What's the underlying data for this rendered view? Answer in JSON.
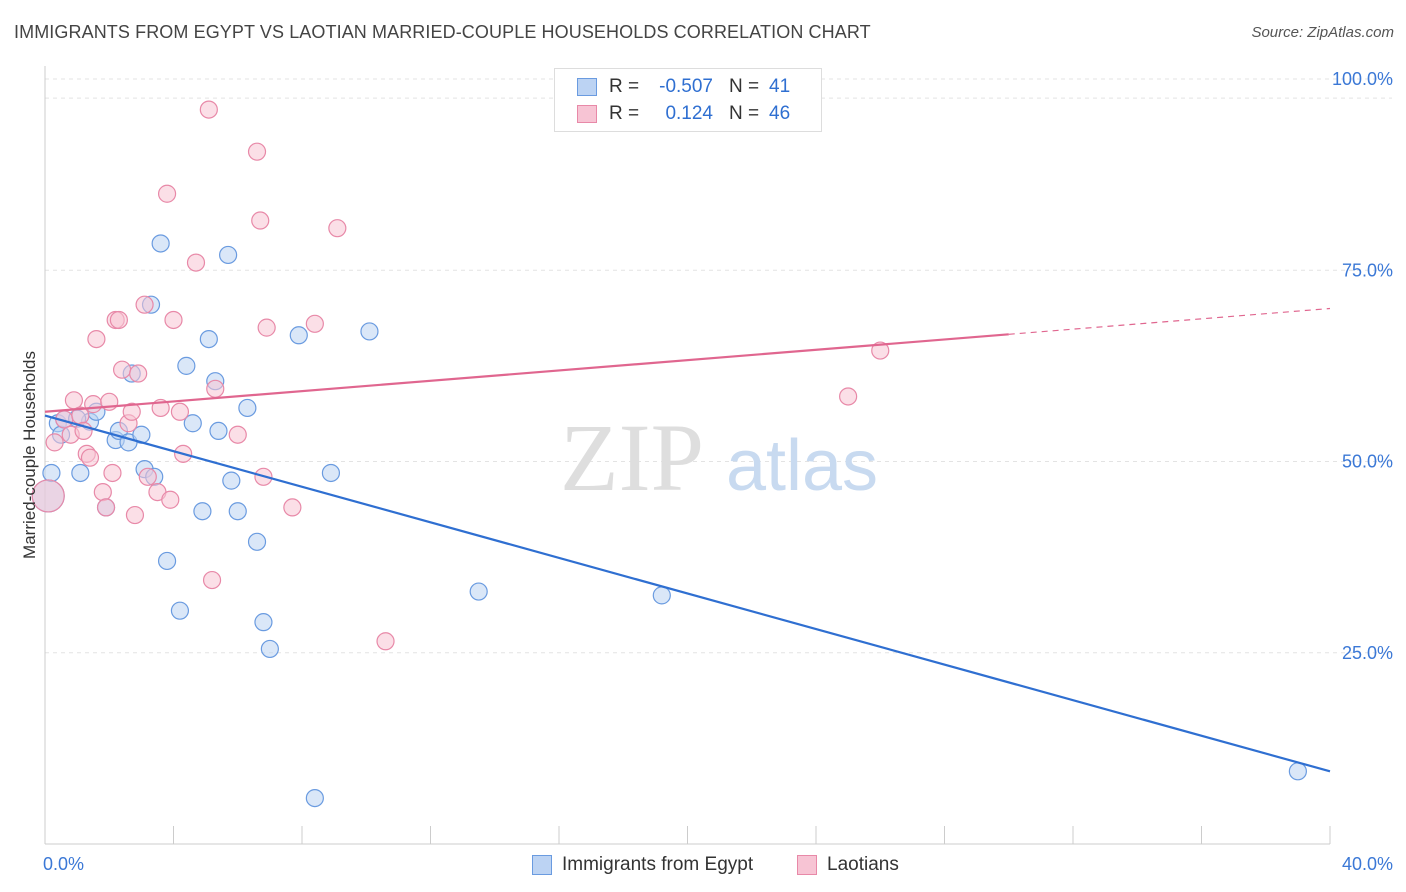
{
  "title": "IMMIGRANTS FROM EGYPT VS LAOTIAN MARRIED-COUPLE HOUSEHOLDS CORRELATION CHART",
  "source": "Source: ZipAtlas.com",
  "watermark": {
    "zip": "ZIP",
    "atlas": "atlas"
  },
  "stats": [
    {
      "r_label": "R =",
      "r_value": "-0.507",
      "n_label": "N =",
      "n_value": "41",
      "color": "#6a9be0",
      "fill": "#bcd3f3"
    },
    {
      "r_label": "R =",
      "r_value": "0.124",
      "n_label": "N =",
      "n_value": "46",
      "color": "#e889a8",
      "fill": "#f7c4d4"
    }
  ],
  "legend": [
    {
      "label": "Immigrants from Egypt",
      "color": "#6a9be0",
      "fill": "#bcd3f3"
    },
    {
      "label": "Laotians",
      "color": "#e889a8",
      "fill": "#f7c4d4"
    }
  ],
  "chart_data": {
    "type": "scatter",
    "ylabel": "Married-couple Households",
    "xlim": [
      0,
      40
    ],
    "ylim": [
      0,
      100
    ],
    "x_tick_labels": [
      {
        "value": 0,
        "label": "0.0%"
      },
      {
        "value": 40,
        "label": "40.0%"
      }
    ],
    "y_tick_labels": [
      {
        "value": 100,
        "label": "100.0%"
      },
      {
        "value": 75,
        "label": "75.0%"
      },
      {
        "value": 50,
        "label": "50.0%"
      },
      {
        "value": 25,
        "label": "25.0%"
      }
    ],
    "x_minor_ticks": [
      0,
      4,
      8,
      12,
      16,
      20,
      24,
      28,
      32,
      36,
      40
    ],
    "grid": true,
    "series": [
      {
        "name": "Immigrants from Egypt",
        "color": "#6a9be0",
        "fill": "#bcd3f3",
        "line_color": "#2f6fd1",
        "trend": {
          "x0": 0,
          "y0": 56,
          "x1": 40,
          "y1": 9.5,
          "solid_to": 40
        },
        "points": [
          [
            0.1,
            45.5,
            3
          ],
          [
            0.2,
            48.5,
            1
          ],
          [
            0.4,
            55.0,
            1
          ],
          [
            0.5,
            53.5,
            1
          ],
          [
            0.6,
            55.5,
            1
          ],
          [
            1.1,
            48.5,
            1
          ],
          [
            1.4,
            55.2,
            1
          ],
          [
            1.6,
            56.5,
            1
          ],
          [
            1.9,
            44.0,
            1
          ],
          [
            2.2,
            52.8,
            1
          ],
          [
            2.3,
            54.0,
            1
          ],
          [
            2.6,
            52.5,
            1
          ],
          [
            2.7,
            61.5,
            1
          ],
          [
            3.0,
            53.5,
            1
          ],
          [
            3.1,
            49.0,
            1
          ],
          [
            3.3,
            70.5,
            1
          ],
          [
            3.4,
            48.0,
            1
          ],
          [
            3.6,
            78.5,
            1
          ],
          [
            3.8,
            37.0,
            1
          ],
          [
            4.2,
            30.5,
            1
          ],
          [
            4.4,
            62.5,
            1
          ],
          [
            4.6,
            55.0,
            1
          ],
          [
            4.9,
            43.5,
            1
          ],
          [
            5.1,
            66.0,
            1
          ],
          [
            5.3,
            60.5,
            1
          ],
          [
            5.4,
            54.0,
            1
          ],
          [
            5.7,
            77.0,
            1
          ],
          [
            5.8,
            47.5,
            1
          ],
          [
            6.0,
            43.5,
            1
          ],
          [
            6.3,
            57.0,
            1
          ],
          [
            6.6,
            39.5,
            1
          ],
          [
            6.8,
            29.0,
            1
          ],
          [
            7.0,
            25.5,
            1
          ],
          [
            7.9,
            66.5,
            1
          ],
          [
            8.4,
            6.0,
            1
          ],
          [
            8.9,
            48.5,
            1
          ],
          [
            10.1,
            67.0,
            1
          ],
          [
            13.5,
            33.0,
            1
          ],
          [
            19.2,
            32.5,
            1
          ],
          [
            39.0,
            9.5,
            1
          ],
          [
            1.0,
            55.6,
            1
          ]
        ]
      },
      {
        "name": "Laotians",
        "color": "#e889a8",
        "fill": "#f7c4d4",
        "line_color": "#e0668f",
        "trend": {
          "x0": 0,
          "y0": 56.5,
          "x1": 40,
          "y1": 70.0,
          "solid_to": 30
        },
        "points": [
          [
            0.1,
            45.5,
            3
          ],
          [
            0.3,
            52.5,
            1
          ],
          [
            0.6,
            55.5,
            1
          ],
          [
            0.8,
            53.5,
            1
          ],
          [
            0.9,
            58.0,
            1
          ],
          [
            1.1,
            56.0,
            1
          ],
          [
            1.3,
            51.0,
            1
          ],
          [
            1.4,
            50.5,
            1
          ],
          [
            1.5,
            57.5,
            1
          ],
          [
            1.6,
            66.0,
            1
          ],
          [
            1.8,
            46.0,
            1
          ],
          [
            1.9,
            44.0,
            1
          ],
          [
            2.1,
            48.5,
            1
          ],
          [
            2.2,
            68.5,
            1
          ],
          [
            2.3,
            68.5,
            1
          ],
          [
            2.4,
            62.0,
            1
          ],
          [
            2.6,
            55.0,
            1
          ],
          [
            2.7,
            56.5,
            1
          ],
          [
            2.8,
            43.0,
            1
          ],
          [
            2.9,
            61.5,
            1
          ],
          [
            3.1,
            70.5,
            1
          ],
          [
            3.2,
            48.0,
            1
          ],
          [
            3.5,
            46.0,
            1
          ],
          [
            3.8,
            85.0,
            1
          ],
          [
            3.9,
            45.0,
            1
          ],
          [
            4.0,
            68.5,
            1
          ],
          [
            4.2,
            56.5,
            1
          ],
          [
            4.3,
            51.0,
            1
          ],
          [
            4.7,
            76.0,
            1
          ],
          [
            5.1,
            96.0,
            1
          ],
          [
            5.2,
            34.5,
            1
          ],
          [
            5.3,
            59.5,
            1
          ],
          [
            6.0,
            53.5,
            1
          ],
          [
            6.6,
            90.5,
            1
          ],
          [
            6.7,
            81.5,
            1
          ],
          [
            6.8,
            48.0,
            1
          ],
          [
            6.9,
            67.5,
            1
          ],
          [
            7.7,
            44.0,
            1
          ],
          [
            8.4,
            68.0,
            1
          ],
          [
            9.1,
            80.5,
            1
          ],
          [
            10.6,
            26.5,
            1
          ],
          [
            25.0,
            58.5,
            1
          ],
          [
            26.0,
            64.5,
            1
          ],
          [
            1.2,
            54.0,
            1
          ],
          [
            3.6,
            57.0,
            1
          ],
          [
            2.0,
            57.8,
            1
          ]
        ]
      }
    ]
  }
}
